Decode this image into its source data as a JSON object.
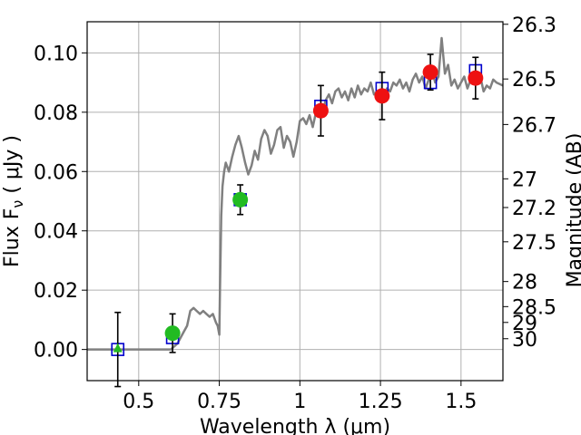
{
  "chart_data": {
    "type": "scatter",
    "title": "",
    "xlabel": "Wavelength  λ (μm)",
    "ylabel": "Flux  F",
    "ylabel_sub": "ν",
    "ylabel_unit": " ( μJy )",
    "y2label": "Magnitude (AB)",
    "xlim": [
      0.34,
      1.63
    ],
    "ylim": [
      -0.0105,
      0.1105
    ],
    "grid": true,
    "xticks": [
      {
        "v": 0.5,
        "label": "0.5"
      },
      {
        "v": 0.75,
        "label": "0.75"
      },
      {
        "v": 1.0,
        "label": "1"
      },
      {
        "v": 1.25,
        "label": "1.25"
      },
      {
        "v": 1.5,
        "label": "1.5"
      }
    ],
    "yticks": [
      {
        "v": 0.0,
        "label": "0.00"
      },
      {
        "v": 0.02,
        "label": "0.02"
      },
      {
        "v": 0.04,
        "label": "0.04"
      },
      {
        "v": 0.06,
        "label": "0.06"
      },
      {
        "v": 0.08,
        "label": "0.08"
      },
      {
        "v": 0.1,
        "label": "0.10"
      }
    ],
    "y2ticks": [
      {
        "mag": 26.3,
        "label": "26.3"
      },
      {
        "mag": 26.5,
        "label": "26.5"
      },
      {
        "mag": 26.7,
        "label": "26.7"
      },
      {
        "mag": 27,
        "label": "27"
      },
      {
        "mag": 27.2,
        "label": "27.2"
      },
      {
        "mag": 27.5,
        "label": "27.5"
      },
      {
        "mag": 28,
        "label": "28"
      },
      {
        "mag": 28.5,
        "label": "28.5"
      },
      {
        "mag": 29,
        "label": "29"
      },
      {
        "mag": 30,
        "label": "30"
      }
    ],
    "colors": {
      "sed": "#808080",
      "model": "#0000cc",
      "detection_green": "#22bb22",
      "detection_red": "#ee1111",
      "errorbar": "#000000",
      "grid": "#b0b0b0"
    },
    "sed_curve": [
      [
        0.34,
        0.0
      ],
      [
        0.6,
        0.0
      ],
      [
        0.62,
        0.002
      ],
      [
        0.64,
        0.006
      ],
      [
        0.65,
        0.008
      ],
      [
        0.66,
        0.013
      ],
      [
        0.67,
        0.014
      ],
      [
        0.68,
        0.013
      ],
      [
        0.69,
        0.012
      ],
      [
        0.7,
        0.013
      ],
      [
        0.71,
        0.012
      ],
      [
        0.72,
        0.011
      ],
      [
        0.73,
        0.012
      ],
      [
        0.74,
        0.009
      ],
      [
        0.745,
        0.008
      ],
      [
        0.75,
        0.005
      ],
      [
        0.752,
        0.02
      ],
      [
        0.756,
        0.045
      ],
      [
        0.76,
        0.055
      ],
      [
        0.765,
        0.06
      ],
      [
        0.77,
        0.063
      ],
      [
        0.78,
        0.06
      ],
      [
        0.79,
        0.065
      ],
      [
        0.8,
        0.069
      ],
      [
        0.81,
        0.072
      ],
      [
        0.82,
        0.068
      ],
      [
        0.83,
        0.063
      ],
      [
        0.84,
        0.059
      ],
      [
        0.85,
        0.062
      ],
      [
        0.86,
        0.067
      ],
      [
        0.87,
        0.064
      ],
      [
        0.88,
        0.071
      ],
      [
        0.89,
        0.074
      ],
      [
        0.9,
        0.072
      ],
      [
        0.91,
        0.066
      ],
      [
        0.92,
        0.069
      ],
      [
        0.93,
        0.074
      ],
      [
        0.94,
        0.075
      ],
      [
        0.95,
        0.068
      ],
      [
        0.96,
        0.072
      ],
      [
        0.97,
        0.07
      ],
      [
        0.98,
        0.065
      ],
      [
        0.99,
        0.07
      ],
      [
        1.0,
        0.077
      ],
      [
        1.01,
        0.078
      ],
      [
        1.02,
        0.076
      ],
      [
        1.03,
        0.079
      ],
      [
        1.04,
        0.075
      ],
      [
        1.05,
        0.08
      ],
      [
        1.06,
        0.082
      ],
      [
        1.07,
        0.08
      ],
      [
        1.08,
        0.084
      ],
      [
        1.09,
        0.086
      ],
      [
        1.1,
        0.083
      ],
      [
        1.11,
        0.087
      ],
      [
        1.12,
        0.088
      ],
      [
        1.13,
        0.085
      ],
      [
        1.14,
        0.087
      ],
      [
        1.15,
        0.084
      ],
      [
        1.16,
        0.088
      ],
      [
        1.17,
        0.085
      ],
      [
        1.18,
        0.089
      ],
      [
        1.19,
        0.086
      ],
      [
        1.2,
        0.088
      ],
      [
        1.21,
        0.087
      ],
      [
        1.22,
        0.09
      ],
      [
        1.23,
        0.086
      ],
      [
        1.24,
        0.087
      ],
      [
        1.25,
        0.086
      ],
      [
        1.26,
        0.085
      ],
      [
        1.27,
        0.088
      ],
      [
        1.28,
        0.087
      ],
      [
        1.29,
        0.09
      ],
      [
        1.3,
        0.089
      ],
      [
        1.31,
        0.091
      ],
      [
        1.32,
        0.088
      ],
      [
        1.33,
        0.09
      ],
      [
        1.34,
        0.087
      ],
      [
        1.35,
        0.091
      ],
      [
        1.36,
        0.093
      ],
      [
        1.37,
        0.09
      ],
      [
        1.38,
        0.092
      ],
      [
        1.39,
        0.088
      ],
      [
        1.4,
        0.091
      ],
      [
        1.41,
        0.094
      ],
      [
        1.42,
        0.09
      ],
      [
        1.43,
        0.092
      ],
      [
        1.44,
        0.105
      ],
      [
        1.45,
        0.093
      ],
      [
        1.46,
        0.096
      ],
      [
        1.47,
        0.089
      ],
      [
        1.48,
        0.091
      ],
      [
        1.49,
        0.088
      ],
      [
        1.5,
        0.09
      ],
      [
        1.51,
        0.092
      ],
      [
        1.52,
        0.088
      ],
      [
        1.53,
        0.091
      ],
      [
        1.54,
        0.093
      ],
      [
        1.55,
        0.09
      ],
      [
        1.56,
        0.092
      ],
      [
        1.57,
        0.087
      ],
      [
        1.58,
        0.089
      ],
      [
        1.59,
        0.088
      ],
      [
        1.6,
        0.091
      ],
      [
        1.61,
        0.09
      ],
      [
        1.63,
        0.089
      ]
    ],
    "model_points": [
      {
        "x": 0.435,
        "y": 0.0
      },
      {
        "x": 0.605,
        "y": 0.004
      },
      {
        "x": 0.815,
        "y": 0.0505
      },
      {
        "x": 1.065,
        "y": 0.082
      },
      {
        "x": 1.255,
        "y": 0.088
      },
      {
        "x": 1.405,
        "y": 0.09
      },
      {
        "x": 1.545,
        "y": 0.094
      }
    ],
    "detections": [
      {
        "x": 0.435,
        "y": 0.0,
        "err": 0.0125,
        "color": "green",
        "marker": "triangle"
      },
      {
        "x": 0.605,
        "y": 0.0055,
        "err": 0.0065,
        "color": "green",
        "marker": "circle"
      },
      {
        "x": 0.815,
        "y": 0.0505,
        "err": 0.005,
        "color": "green",
        "marker": "circle"
      },
      {
        "x": 1.065,
        "y": 0.0805,
        "err": 0.0085,
        "color": "red",
        "marker": "circle"
      },
      {
        "x": 1.255,
        "y": 0.0855,
        "err": 0.008,
        "color": "red",
        "marker": "circle"
      },
      {
        "x": 1.405,
        "y": 0.0935,
        "err": 0.006,
        "color": "red",
        "marker": "circle"
      },
      {
        "x": 1.545,
        "y": 0.0915,
        "err": 0.007,
        "color": "red",
        "marker": "circle"
      }
    ]
  }
}
